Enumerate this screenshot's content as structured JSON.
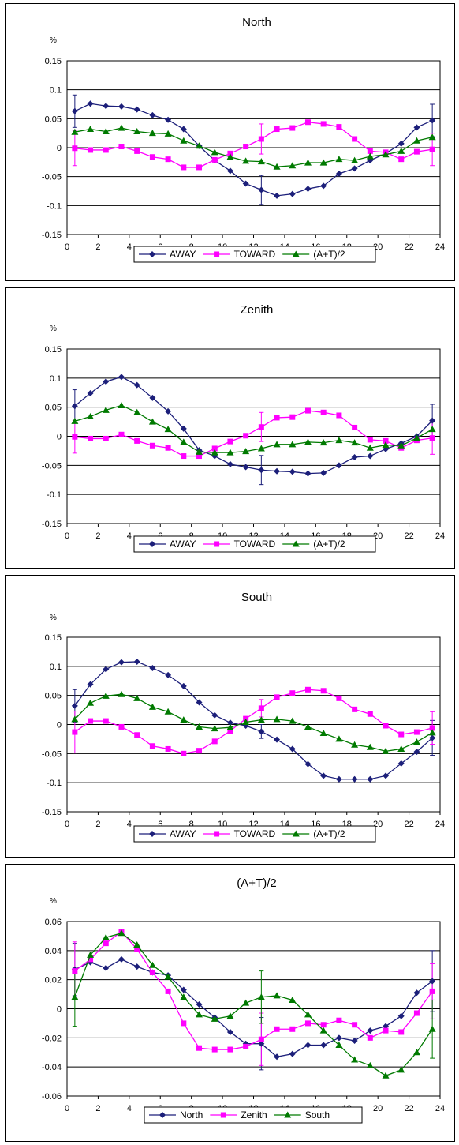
{
  "chart_data": [
    {
      "type": "line",
      "title": "North",
      "unit_label": "%",
      "x": [
        0.5,
        1.5,
        2.5,
        3.5,
        4.5,
        5.5,
        6.5,
        7.5,
        8.5,
        9.5,
        10.5,
        11.5,
        12.5,
        13.5,
        14.5,
        15.5,
        16.5,
        17.5,
        18.5,
        19.5,
        20.5,
        21.5,
        22.5,
        23.5
      ],
      "xlim": [
        0,
        24
      ],
      "xticks": [
        "0",
        "2",
        "4",
        "6",
        "8",
        "10",
        "12",
        "14",
        "16",
        "18",
        "20",
        "22",
        "24"
      ],
      "ylim": [
        -0.15,
        0.15
      ],
      "yticks": [
        "-0.15",
        "-0.1",
        "-0.05",
        "0",
        "0.05",
        "0.1",
        "0.15"
      ],
      "grid": "horizontal",
      "legend_position": "bottom",
      "series": [
        {
          "name": "AWAY",
          "color": "#1c1f7a",
          "marker": "diamond",
          "values": [
            0.063,
            0.076,
            0.072,
            0.071,
            0.066,
            0.056,
            0.048,
            0.032,
            0.003,
            -0.022,
            -0.04,
            -0.062,
            -0.073,
            -0.083,
            -0.08,
            -0.071,
            -0.066,
            -0.045,
            -0.036,
            -0.022,
            -0.01,
            0.007,
            0.035,
            0.047
          ]
        },
        {
          "name": "TOWARD",
          "color": "#ff00ff",
          "marker": "square",
          "values": [
            -0.001,
            -0.004,
            -0.004,
            0.002,
            -0.006,
            -0.016,
            -0.02,
            -0.034,
            -0.034,
            -0.021,
            -0.01,
            0.002,
            0.015,
            0.032,
            0.034,
            0.044,
            0.041,
            0.036,
            0.015,
            -0.006,
            -0.008,
            -0.02,
            -0.007,
            -0.003
          ]
        },
        {
          "name": "(A+T)/2",
          "color": "#007a00",
          "marker": "triangle",
          "values": [
            0.027,
            0.032,
            0.028,
            0.034,
            0.028,
            0.025,
            0.024,
            0.012,
            0.003,
            -0.008,
            -0.016,
            -0.023,
            -0.024,
            -0.033,
            -0.031,
            -0.026,
            -0.026,
            -0.02,
            -0.022,
            -0.015,
            -0.012,
            -0.006,
            0.012,
            0.018
          ]
        }
      ]
    },
    {
      "type": "line",
      "title": "Zenith",
      "unit_label": "%",
      "x": [
        0.5,
        1.5,
        2.5,
        3.5,
        4.5,
        5.5,
        6.5,
        7.5,
        8.5,
        9.5,
        10.5,
        11.5,
        12.5,
        13.5,
        14.5,
        15.5,
        16.5,
        17.5,
        18.5,
        19.5,
        20.5,
        21.5,
        22.5,
        23.5
      ],
      "xlim": [
        0,
        24
      ],
      "xticks": [
        "0",
        "2",
        "4",
        "6",
        "8",
        "10",
        "12",
        "14",
        "16",
        "18",
        "20",
        "22",
        "24"
      ],
      "ylim": [
        -0.15,
        0.15
      ],
      "yticks": [
        "-0.15",
        "-0.1",
        "-0.05",
        "0",
        "0.05",
        "0.1",
        "0.15"
      ],
      "grid": "horizontal",
      "legend_position": "bottom",
      "series": [
        {
          "name": "AWAY",
          "color": "#1c1f7a",
          "marker": "diamond",
          "values": [
            0.052,
            0.074,
            0.094,
            0.102,
            0.088,
            0.066,
            0.043,
            0.013,
            -0.024,
            -0.034,
            -0.048,
            -0.053,
            -0.058,
            -0.06,
            -0.061,
            -0.064,
            -0.063,
            -0.05,
            -0.036,
            -0.034,
            -0.022,
            -0.012,
            0.0,
            0.027
          ]
        },
        {
          "name": "TOWARD",
          "color": "#ff00ff",
          "marker": "square",
          "values": [
            -0.001,
            -0.004,
            -0.004,
            0.003,
            -0.008,
            -0.016,
            -0.02,
            -0.034,
            -0.034,
            -0.021,
            -0.009,
            0.001,
            0.016,
            0.032,
            0.033,
            0.044,
            0.041,
            0.036,
            0.015,
            -0.006,
            -0.008,
            -0.02,
            -0.007,
            -0.003
          ]
        },
        {
          "name": "(A+T)/2",
          "color": "#007a00",
          "marker": "triangle",
          "values": [
            0.026,
            0.034,
            0.045,
            0.053,
            0.041,
            0.025,
            0.012,
            -0.01,
            -0.027,
            -0.028,
            -0.028,
            -0.026,
            -0.021,
            -0.014,
            -0.014,
            -0.01,
            -0.011,
            -0.007,
            -0.011,
            -0.02,
            -0.015,
            -0.016,
            -0.003,
            0.012
          ]
        }
      ]
    },
    {
      "type": "line",
      "title": "South",
      "unit_label": "%",
      "x": [
        0.5,
        1.5,
        2.5,
        3.5,
        4.5,
        5.5,
        6.5,
        7.5,
        8.5,
        9.5,
        10.5,
        11.5,
        12.5,
        13.5,
        14.5,
        15.5,
        16.5,
        17.5,
        18.5,
        19.5,
        20.5,
        21.5,
        22.5,
        23.5
      ],
      "xlim": [
        0,
        24
      ],
      "xticks": [
        "0",
        "2",
        "4",
        "6",
        "8",
        "10",
        "12",
        "14",
        "16",
        "18",
        "20",
        "22",
        "24"
      ],
      "ylim": [
        -0.15,
        0.15
      ],
      "yticks": [
        "-0.15",
        "-0.1",
        "-0.05",
        "0",
        "0.05",
        "0.1",
        "0.15"
      ],
      "grid": "horizontal",
      "legend_position": "bottom",
      "series": [
        {
          "name": "AWAY",
          "color": "#1c1f7a",
          "marker": "diamond",
          "values": [
            0.032,
            0.069,
            0.095,
            0.107,
            0.108,
            0.097,
            0.085,
            0.066,
            0.038,
            0.016,
            0.003,
            -0.002,
            -0.012,
            -0.026,
            -0.042,
            -0.068,
            -0.088,
            -0.094,
            -0.094,
            -0.094,
            -0.088,
            -0.067,
            -0.047,
            -0.023
          ]
        },
        {
          "name": "TOWARD",
          "color": "#ff00ff",
          "marker": "square",
          "values": [
            -0.013,
            0.006,
            0.006,
            -0.004,
            -0.018,
            -0.037,
            -0.042,
            -0.05,
            -0.045,
            -0.029,
            -0.011,
            0.01,
            0.028,
            0.047,
            0.054,
            0.06,
            0.058,
            0.045,
            0.026,
            0.018,
            -0.002,
            -0.017,
            -0.013,
            -0.006
          ]
        },
        {
          "name": "(A+T)/2",
          "color": "#007a00",
          "marker": "triangle",
          "values": [
            0.009,
            0.037,
            0.049,
            0.052,
            0.045,
            0.03,
            0.022,
            0.008,
            -0.004,
            -0.007,
            -0.005,
            0.004,
            0.008,
            0.009,
            0.006,
            -0.004,
            -0.015,
            -0.025,
            -0.035,
            -0.039,
            -0.046,
            -0.042,
            -0.03,
            -0.014
          ]
        }
      ]
    },
    {
      "type": "line",
      "title": "(A+T)/2",
      "unit_label": "%",
      "x": [
        0.5,
        1.5,
        2.5,
        3.5,
        4.5,
        5.5,
        6.5,
        7.5,
        8.5,
        9.5,
        10.5,
        11.5,
        12.5,
        13.5,
        14.5,
        15.5,
        16.5,
        17.5,
        18.5,
        19.5,
        20.5,
        21.5,
        22.5,
        23.5
      ],
      "xlim": [
        0,
        24
      ],
      "xticks": [
        "0",
        "2",
        "4",
        "6",
        "8",
        "10",
        "12",
        "14",
        "16",
        "18",
        "20",
        "22",
        "24"
      ],
      "ylim": [
        -0.06,
        0.06
      ],
      "yticks": [
        "-0.06",
        "-0.04",
        "-0.02",
        "0",
        "0.02",
        "0.04",
        "0.06"
      ],
      "grid": "horizontal",
      "legend_position": "bottom",
      "series": [
        {
          "name": "North",
          "color": "#1c1f7a",
          "marker": "diamond",
          "values": [
            0.027,
            0.032,
            0.028,
            0.034,
            0.029,
            0.025,
            0.023,
            0.013,
            0.003,
            -0.006,
            -0.016,
            -0.024,
            -0.024,
            -0.033,
            -0.031,
            -0.025,
            -0.025,
            -0.02,
            -0.022,
            -0.015,
            -0.012,
            -0.005,
            0.011,
            0.019
          ]
        },
        {
          "name": "Zenith",
          "color": "#ff00ff",
          "marker": "square",
          "values": [
            0.026,
            0.034,
            0.045,
            0.053,
            0.041,
            0.025,
            0.012,
            -0.01,
            -0.027,
            -0.028,
            -0.028,
            -0.026,
            -0.021,
            -0.014,
            -0.014,
            -0.01,
            -0.011,
            -0.008,
            -0.011,
            -0.02,
            -0.015,
            -0.016,
            -0.003,
            0.012
          ]
        },
        {
          "name": "South",
          "color": "#007a00",
          "marker": "triangle",
          "values": [
            0.008,
            0.037,
            0.049,
            0.052,
            0.044,
            0.03,
            0.022,
            0.008,
            -0.004,
            -0.007,
            -0.005,
            0.004,
            0.008,
            0.009,
            0.006,
            -0.004,
            -0.015,
            -0.025,
            -0.035,
            -0.039,
            -0.046,
            -0.042,
            -0.03,
            -0.014
          ]
        }
      ]
    }
  ]
}
